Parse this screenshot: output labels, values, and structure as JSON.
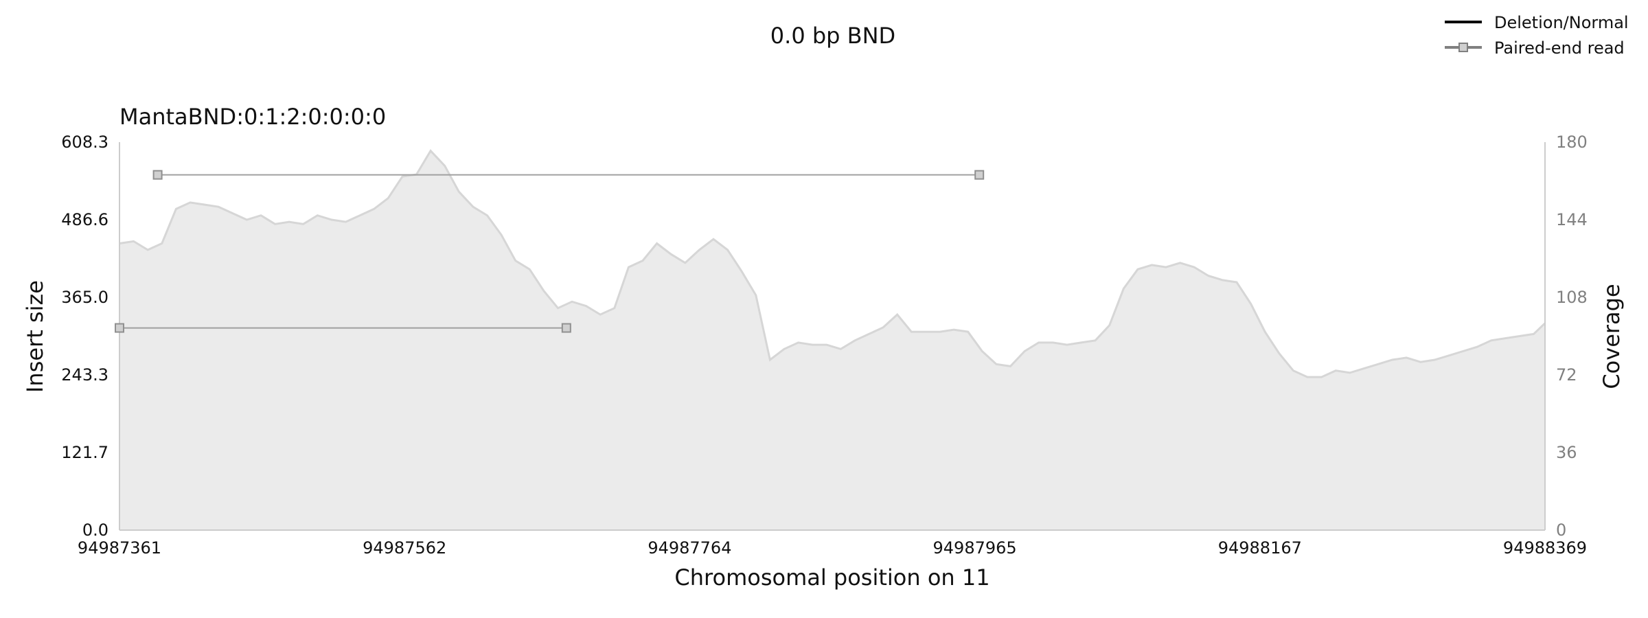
{
  "chart_data": {
    "type": "area",
    "title": "0.0 bp BND",
    "subtitle": "MantaBND:0:1:2:0:0:0:0",
    "xlabel": "Chromosomal position on 11",
    "ylabel_left": "Insert size",
    "ylabel_right": "Coverage",
    "xlim": [
      94987361,
      94988369
    ],
    "x_ticks": [
      "94987361",
      "94987562",
      "94987764",
      "94987965",
      "94988167",
      "94988369"
    ],
    "ylim_left": [
      0,
      608.3
    ],
    "y_ticks_left": [
      "0.0",
      "121.7",
      "243.3",
      "365.0",
      "486.6",
      "608.3"
    ],
    "ylim_right": [
      0,
      180
    ],
    "y_ticks_right": [
      "0",
      "36",
      "72",
      "108",
      "144",
      "180"
    ],
    "legend": {
      "position": "top-right",
      "entries": [
        {
          "label": "Deletion/Normal",
          "color": "#000000",
          "marker": "none"
        },
        {
          "label": "Paired-end read",
          "color": "#808080",
          "marker": "square"
        }
      ]
    },
    "paired_end_reads": [
      {
        "x_start": 94987388,
        "x_end": 94987969,
        "insert_size": 557
      },
      {
        "x_start": 94987361,
        "x_end": 94987677,
        "insert_size": 317
      }
    ],
    "coverage": {
      "x": [
        94987361,
        94987371,
        94987381,
        94987391,
        94987401,
        94987411,
        94987421,
        94987431,
        94987441,
        94987451,
        94987461,
        94987471,
        94987481,
        94987491,
        94987501,
        94987511,
        94987521,
        94987531,
        94987541,
        94987551,
        94987561,
        94987571,
        94987581,
        94987591,
        94987601,
        94987611,
        94987621,
        94987631,
        94987641,
        94987651,
        94987661,
        94987671,
        94987681,
        94987691,
        94987701,
        94987711,
        94987721,
        94987731,
        94987741,
        94987751,
        94987761,
        94987771,
        94987781,
        94987791,
        94987801,
        94987811,
        94987821,
        94987831,
        94987841,
        94987851,
        94987861,
        94987871,
        94987881,
        94987891,
        94987901,
        94987911,
        94987921,
        94987931,
        94987941,
        94987951,
        94987961,
        94987971,
        94987981,
        94987991,
        94988001,
        94988011,
        94988021,
        94988031,
        94988041,
        94988051,
        94988061,
        94988071,
        94988081,
        94988091,
        94988101,
        94988111,
        94988121,
        94988131,
        94988141,
        94988151,
        94988161,
        94988171,
        94988181,
        94988191,
        94988201,
        94988211,
        94988221,
        94988231,
        94988241,
        94988251,
        94988261,
        94988271,
        94988281,
        94988291,
        94988301,
        94988311,
        94988321,
        94988331,
        94988341,
        94988351,
        94988361,
        94988369
      ],
      "values": [
        133,
        134,
        130,
        133,
        149,
        152,
        151,
        150,
        147,
        144,
        146,
        142,
        143,
        142,
        146,
        144,
        143,
        146,
        149,
        154,
        164,
        165,
        176,
        169,
        157,
        150,
        146,
        137,
        125,
        121,
        111,
        103,
        106,
        104,
        100,
        103,
        122,
        125,
        133,
        128,
        124,
        130,
        135,
        130,
        120,
        109,
        79,
        84,
        87,
        86,
        86,
        84,
        88,
        91,
        94,
        100,
        92,
        92,
        92,
        93,
        92,
        83,
        77,
        76,
        83,
        87,
        87,
        86,
        87,
        88,
        95,
        112,
        121,
        123,
        122,
        124,
        122,
        118,
        116,
        115,
        105,
        92,
        82,
        74,
        71,
        71,
        74,
        73,
        75,
        77,
        79,
        80,
        78,
        79,
        81,
        83,
        85,
        88,
        89,
        90,
        91,
        96
      ]
    }
  }
}
